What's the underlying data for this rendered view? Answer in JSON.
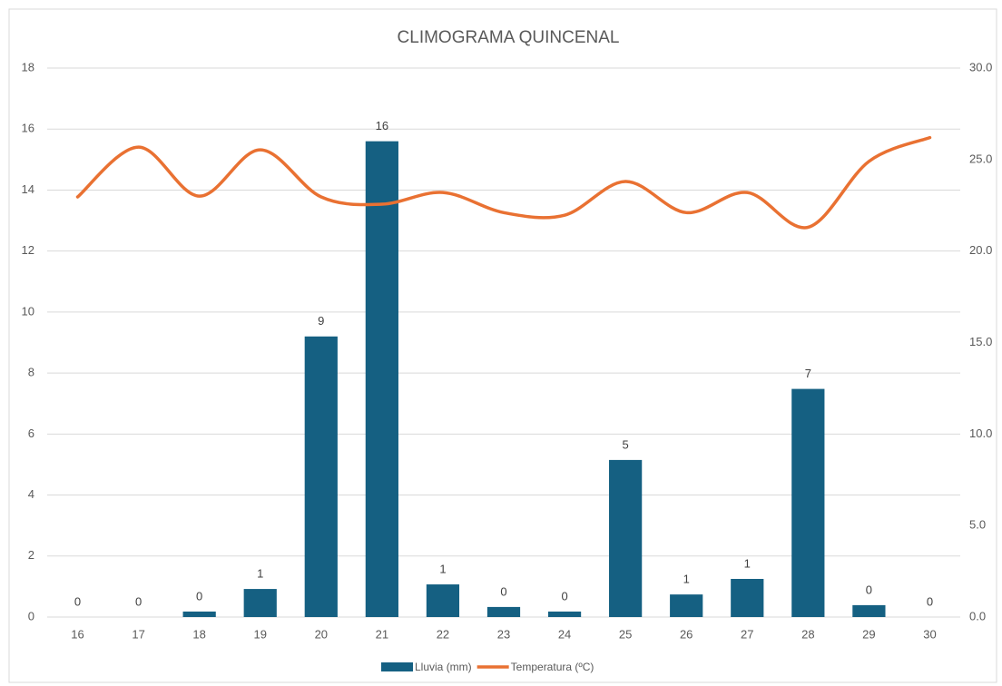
{
  "chart_data": {
    "type": "bar_line",
    "title": "CLIMOGRAMA QUINCENAL",
    "categories": [
      "16",
      "17",
      "18",
      "19",
      "20",
      "21",
      "22",
      "23",
      "24",
      "25",
      "26",
      "27",
      "28",
      "29",
      "30"
    ],
    "series": [
      {
        "name": "Lluvia (mm)",
        "color": "#156082",
        "kind": "bar",
        "values": [
          0,
          0,
          0.18,
          0.92,
          9.2,
          15.6,
          1.07,
          0.33,
          0.18,
          5.15,
          0.74,
          1.25,
          7.48,
          0.39,
          0
        ],
        "value_labels": [
          "0",
          "0",
          "0",
          "1",
          "9",
          "16",
          "1",
          "0",
          "0",
          "5",
          "1",
          "1",
          "7",
          "0",
          "0"
        ]
      },
      {
        "name": "Temperatura (ºC)",
        "color": "#e97132",
        "kind": "line",
        "axis": "y2",
        "values": [
          22.96,
          25.68,
          23.0,
          25.53,
          22.96,
          22.56,
          23.2,
          22.1,
          21.96,
          23.8,
          22.1,
          23.2,
          21.3,
          24.9,
          26.2
        ]
      }
    ],
    "ylim": [
      0,
      18
    ],
    "yticks": [
      0,
      2,
      4,
      6,
      8,
      10,
      12,
      14,
      16,
      18
    ],
    "y2lim": [
      0,
      30
    ],
    "y2ticks": [
      {
        "value": 0,
        "label": "0.0"
      },
      {
        "value": 5,
        "label": "5.0"
      },
      {
        "value": 10,
        "label": "10.0"
      },
      {
        "value": 15,
        "label": "15.0"
      },
      {
        "value": 20,
        "label": "20.0"
      },
      {
        "value": 25,
        "label": "25.0"
      },
      {
        "value": 30,
        "label": "30.0"
      }
    ],
    "grid": true,
    "legend": "bottom"
  }
}
